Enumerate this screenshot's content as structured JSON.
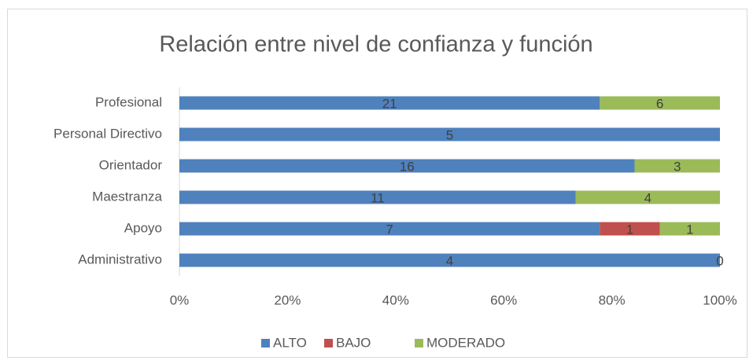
{
  "chart_data": {
    "type": "bar",
    "orientation": "horizontal",
    "stacking": "percent",
    "title": "Relación entre nivel de confianza y función",
    "categories": [
      "Profesional",
      "Personal Directivo",
      "Orientador",
      "Maestranza",
      "Apoyo",
      "Administrativo"
    ],
    "series": [
      {
        "name": "ALTO",
        "color": "#4f81bd",
        "values": [
          21,
          5,
          16,
          11,
          7,
          4
        ]
      },
      {
        "name": "BAJO",
        "color": "#c0504d",
        "values": [
          null,
          null,
          null,
          null,
          1,
          null
        ]
      },
      {
        "name": "MODERADO",
        "color": "#9bbb59",
        "values": [
          6,
          null,
          3,
          4,
          1,
          0
        ]
      }
    ],
    "xlim": [
      0,
      100
    ],
    "xticks": [
      {
        "value": 0,
        "label": "0%"
      },
      {
        "value": 20,
        "label": "20%"
      },
      {
        "value": 40,
        "label": "40%"
      },
      {
        "value": 60,
        "label": "60%"
      },
      {
        "value": 80,
        "label": "80%"
      },
      {
        "value": 100,
        "label": "100%"
      }
    ],
    "legend": "bottom"
  }
}
